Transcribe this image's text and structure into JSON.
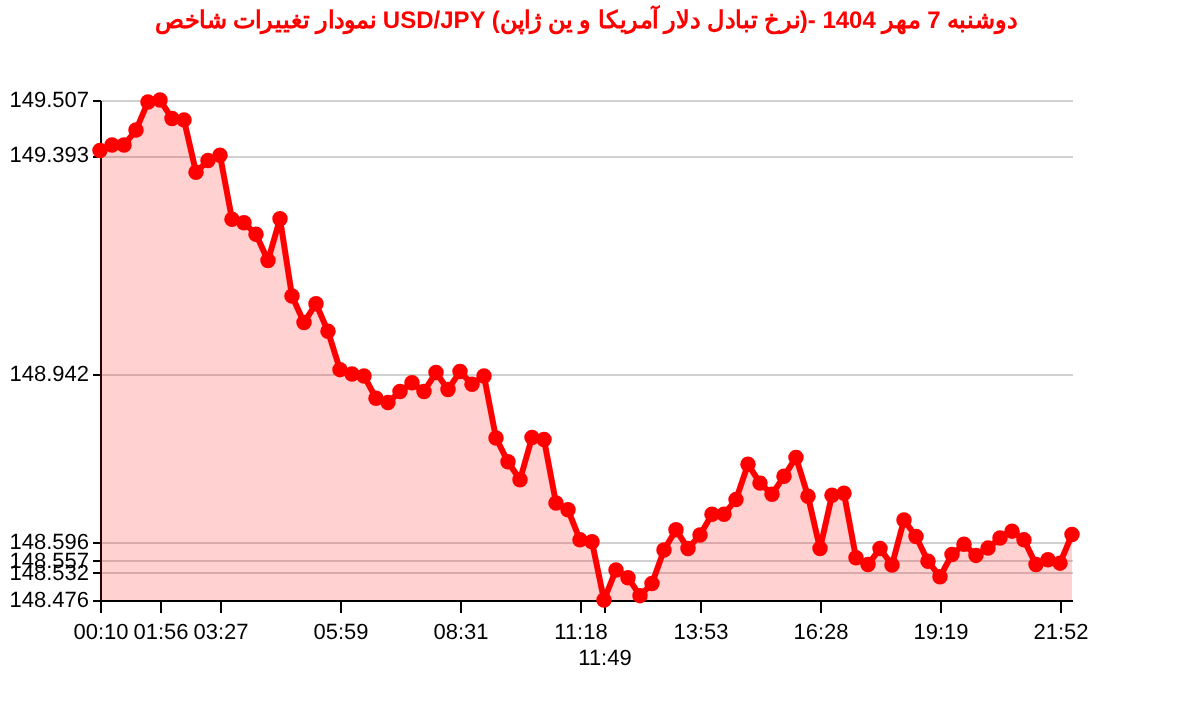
{
  "chart_data": {
    "type": "area",
    "title": "نمودار تغییرات شاخص USD/JPY (نرخ تبادل دلار آمریکا و ین ژاپن)- دوشنبه  7 مهر 1404",
    "categories": [
      "00:10",
      null,
      null,
      null,
      null,
      "01:56",
      null,
      null,
      null,
      null,
      "03:27",
      null,
      null,
      null,
      null,
      null,
      null,
      null,
      null,
      null,
      "05:59",
      null,
      null,
      null,
      null,
      null,
      null,
      null,
      null,
      null,
      "08:31",
      null,
      null,
      null,
      null,
      null,
      null,
      null,
      null,
      null,
      "11:18",
      null,
      "11:49",
      null,
      null,
      null,
      null,
      null,
      null,
      null,
      "13:53",
      null,
      null,
      null,
      null,
      null,
      null,
      null,
      null,
      null,
      "16:28",
      null,
      null,
      null,
      null,
      null,
      null,
      null,
      null,
      null,
      "19:19",
      null,
      null,
      null,
      null,
      null,
      null,
      null,
      null,
      null,
      "21:52",
      null
    ],
    "series": [
      {
        "color": "#ff0000",
        "values": [
          149.403,
          149.414,
          149.414,
          149.445,
          149.503,
          149.507,
          149.469,
          149.466,
          149.358,
          149.382,
          149.393,
          149.261,
          149.254,
          149.23,
          149.176,
          149.262,
          149.103,
          149.048,
          149.087,
          149.03,
          148.951,
          148.942,
          148.938,
          148.892,
          148.883,
          148.906,
          148.924,
          148.906,
          148.945,
          148.91,
          148.947,
          148.921,
          148.938,
          148.81,
          148.761,
          148.724,
          148.811,
          148.807,
          148.676,
          148.662,
          148.6,
          148.596,
          148.476,
          148.538,
          148.522,
          148.485,
          148.51,
          148.579,
          148.621,
          148.582,
          148.61,
          148.653,
          148.653,
          148.683,
          148.756,
          148.717,
          148.694,
          148.731,
          148.77,
          148.69,
          148.582,
          148.692,
          148.696,
          148.563,
          148.549,
          148.582,
          148.548,
          148.641,
          148.607,
          148.556,
          148.524,
          148.57,
          148.591,
          148.568,
          148.583,
          148.604,
          148.618,
          148.6,
          148.549,
          148.559,
          148.552,
          148.611
        ]
      }
    ],
    "ylim": [
      148.476,
      149.507
    ],
    "yticks": [
      148.476,
      148.532,
      148.557,
      148.596,
      148.942,
      149.393,
      149.507
    ],
    "grid": "y",
    "marker": "circle",
    "line_style": "solid"
  }
}
